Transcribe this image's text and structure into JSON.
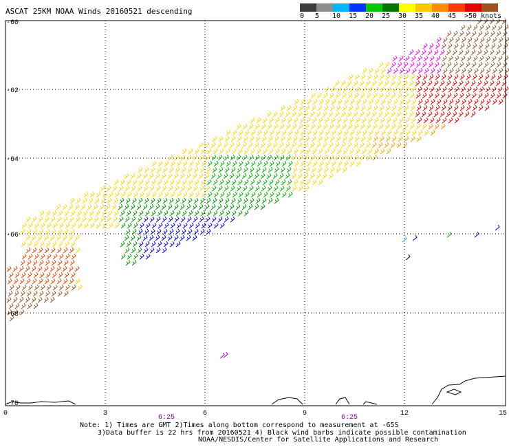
{
  "title": "ASCAT 25KM NOAA Winds 20160521 descending",
  "legend": {
    "swatches": [
      "#3c3c3c",
      "#8c8c8c",
      "#00b4ff",
      "#0032ff",
      "#00c800",
      "#007800",
      "#ffff00",
      "#ffc800",
      "#ff8c00",
      "#ff3c00",
      "#e60000",
      "#a0501e",
      "#5a3214",
      "#ff00ff",
      "#a000c8",
      "#50008c"
    ],
    "labels": [
      "0",
      "5",
      "10",
      "15",
      "20",
      "25",
      "30",
      "35",
      "40",
      "45",
      ">50 knots"
    ]
  },
  "axes": {
    "x_ticks": [
      "0",
      "3",
      "6",
      "9",
      "12",
      "15"
    ],
    "y_ticks": [
      "-60",
      "-62",
      "-64",
      "-66",
      "-68",
      "-70"
    ]
  },
  "pass_times": [
    "6:25",
    "6:25"
  ],
  "notes": [
    "Note: 1) Times are GMT 2)Times along bottom correspond to measurement at -65S",
    "3)Data buffer is 22 hrs from 20160521 4) Black wind barbs indicate possible contamination",
    "NOAA/NESDIS/Center for Satellite Applications and Research"
  ],
  "colors": {
    "time_label": "#990099",
    "coast": "#000000",
    "grid": "#000000"
  }
}
